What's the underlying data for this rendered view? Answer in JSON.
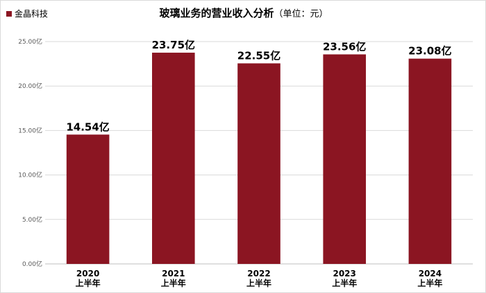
{
  "chart_data": {
    "type": "bar",
    "title": "玻璃业务的营业收入分析",
    "title_unit": "（单位：元）",
    "categories": [
      [
        "2020",
        "上半年"
      ],
      [
        "2021",
        "上半年"
      ],
      [
        "2022",
        "上半年"
      ],
      [
        "2023",
        "上半年"
      ],
      [
        "2024",
        "上半年"
      ]
    ],
    "series": [
      {
        "name": "金晶科技",
        "color": "#8b1522",
        "values": [
          14.54,
          23.75,
          22.55,
          23.56,
          23.08
        ],
        "data_labels": [
          "14.54亿",
          "23.75亿",
          "22.55亿",
          "23.56亿",
          "23.08亿"
        ]
      }
    ],
    "ylim": [
      0,
      25
    ],
    "yticks": [
      0,
      5,
      10,
      15,
      20,
      25
    ],
    "ytick_labels": [
      "0.00亿",
      "5.00亿",
      "10.00亿",
      "15.00亿",
      "20.00亿",
      "25.00亿"
    ],
    "grid": true,
    "legend_position": "top-left"
  }
}
